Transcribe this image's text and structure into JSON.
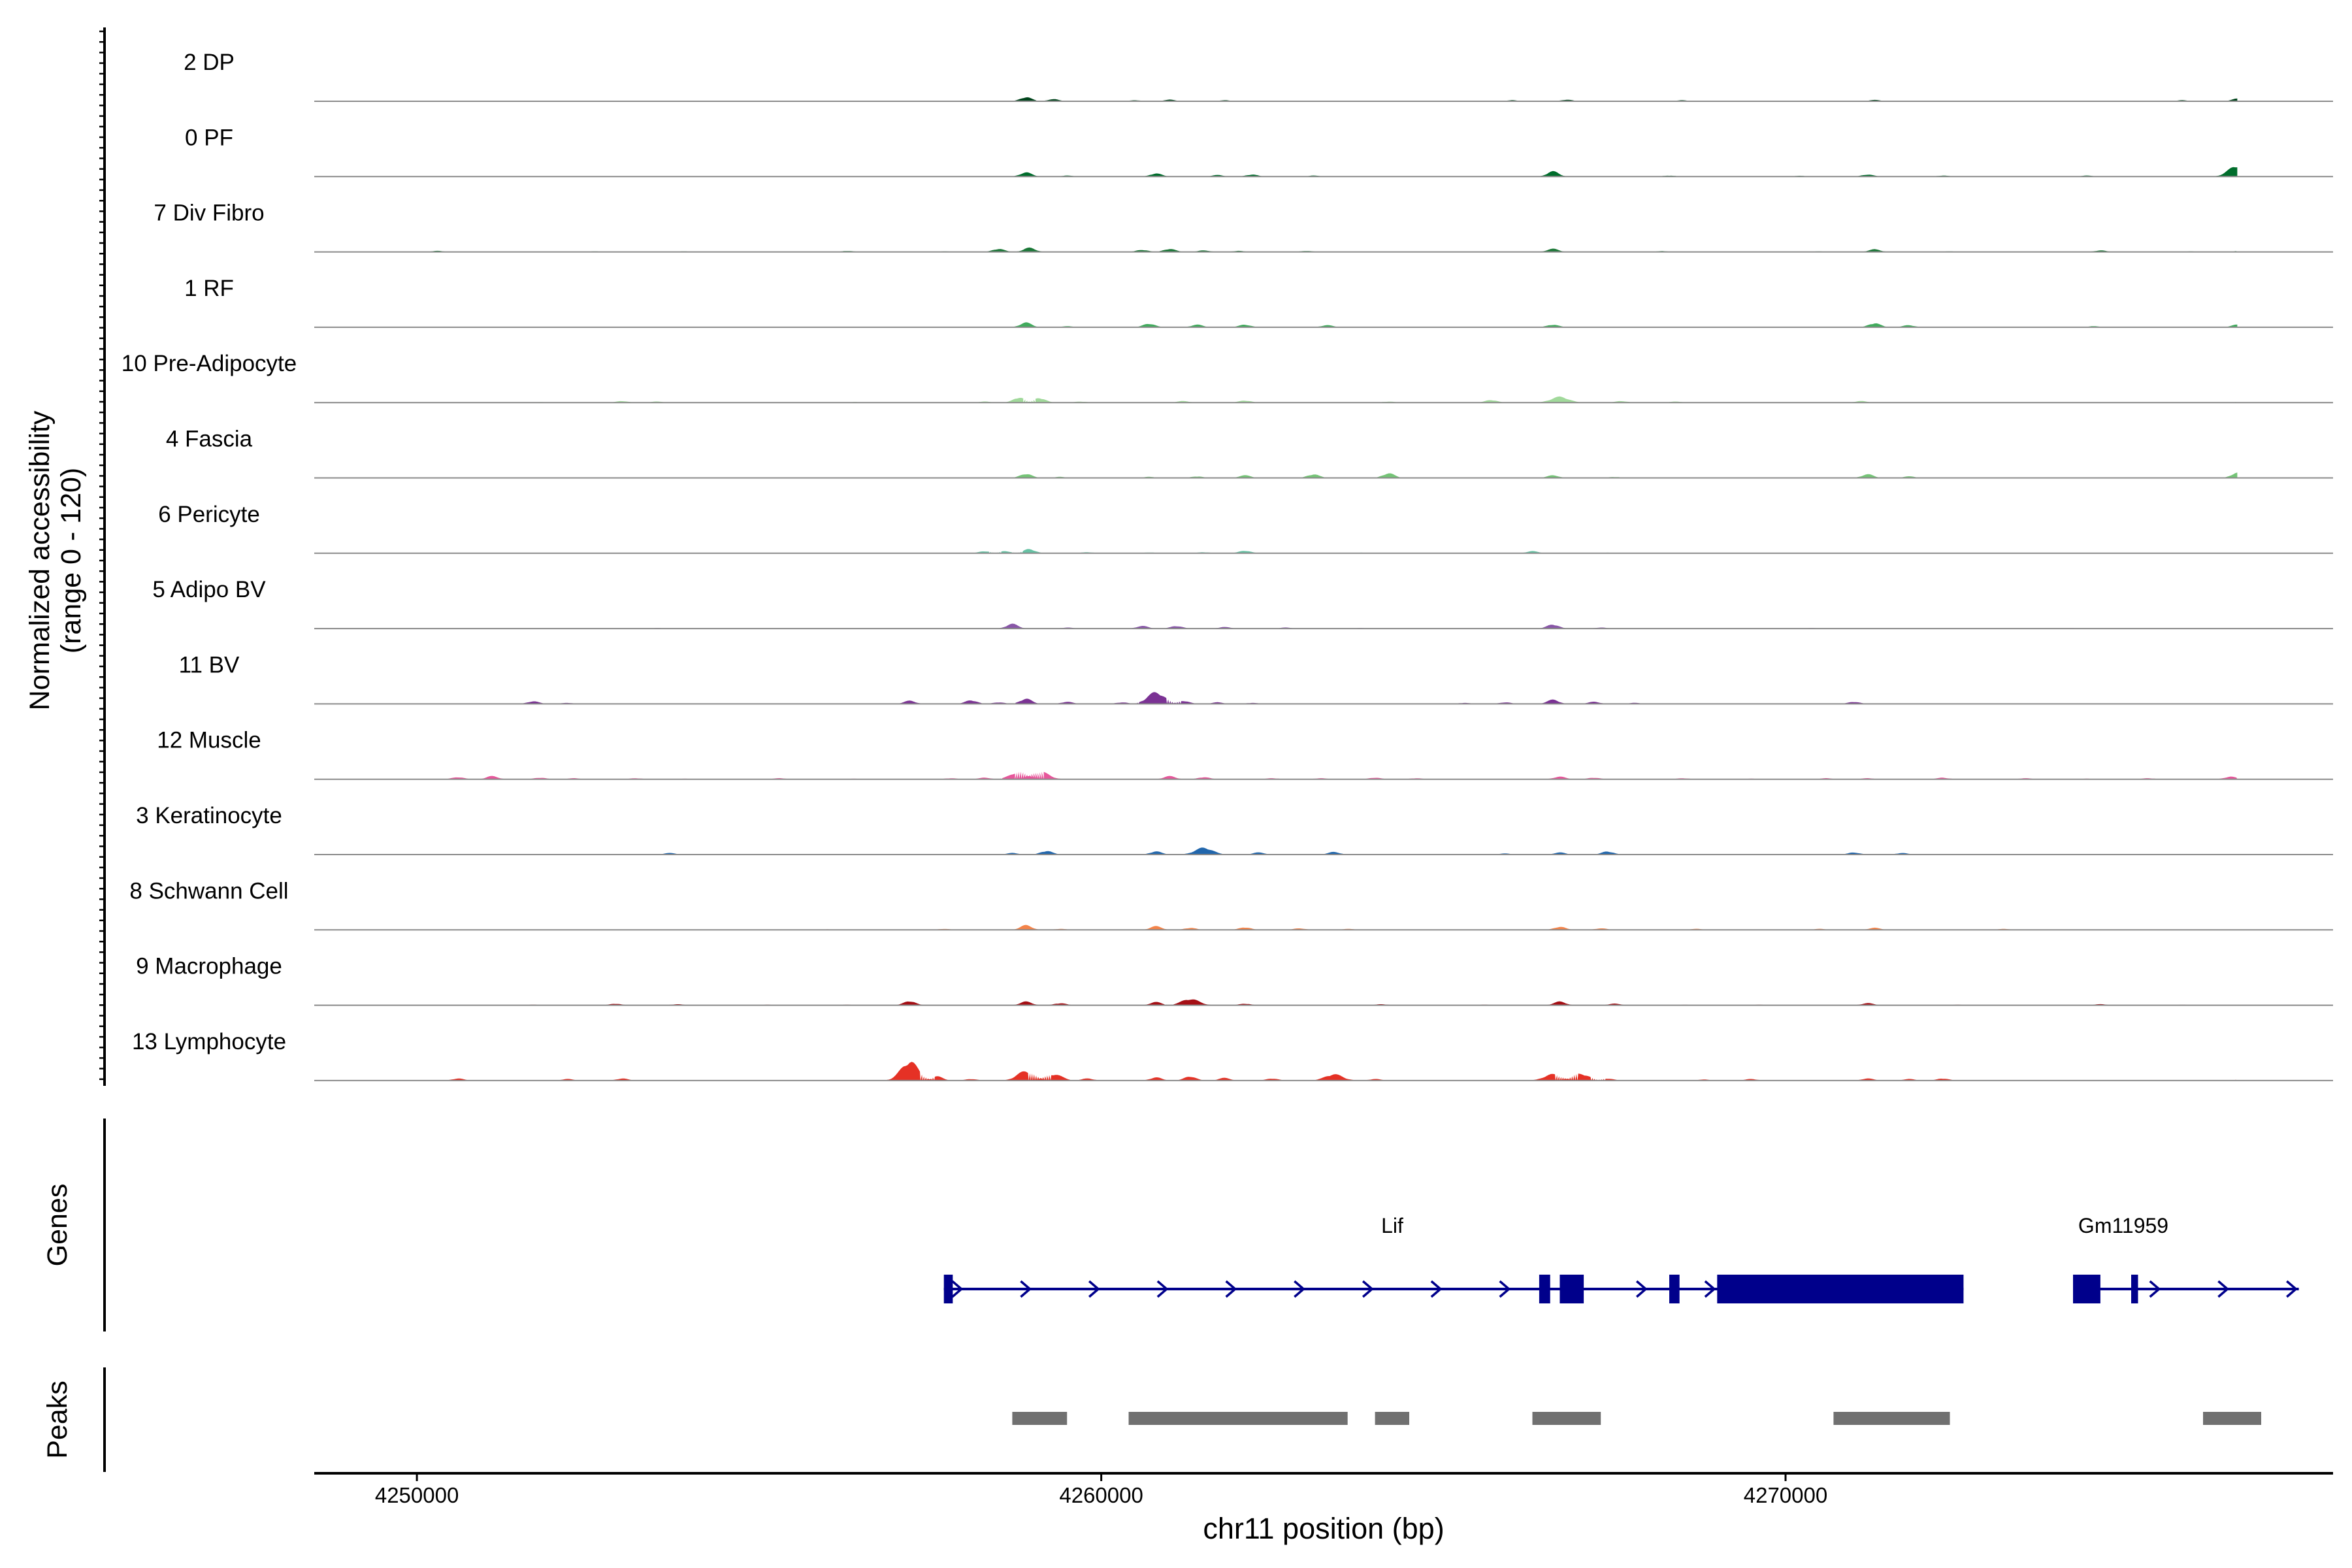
{
  "chart_data": {
    "type": "area",
    "title": "",
    "chromosome": "chr11",
    "xlabel": "chr11 position (bp)",
    "ylabel": "Normalized accessibility",
    "ylabel_range": "(range 0 - 120)",
    "ylim": [
      0,
      120
    ],
    "xlim": [
      4248500,
      4278000
    ],
    "x_ticks": [
      4250000,
      4260000,
      4270000
    ],
    "x_tick_labels": [
      "4250000",
      "4260000",
      "4270000"
    ],
    "genes_label": "Genes",
    "peaks_label": "Peaks",
    "tracks": [
      {
        "name": "2 DP",
        "color": "#00441B",
        "peaks": [
          [
            4250000,
            0.6
          ],
          [
            4251500,
            0.8
          ],
          [
            4254000,
            0.8
          ],
          [
            4256000,
            0.8
          ],
          [
            4258000,
            0.8
          ],
          [
            4258900,
            8
          ],
          [
            4259300,
            4
          ],
          [
            4260500,
            2
          ],
          [
            4261000,
            3
          ],
          [
            4261800,
            2
          ],
          [
            4263000,
            1
          ],
          [
            4264500,
            1
          ],
          [
            4266000,
            2
          ],
          [
            4266800,
            3
          ],
          [
            4268500,
            2
          ],
          [
            4269500,
            1
          ],
          [
            4271300,
            2.5
          ],
          [
            4273000,
            1
          ],
          [
            4274500,
            1
          ],
          [
            4275800,
            2
          ],
          [
            4276600,
            5
          ],
          [
            4277400,
            1
          ]
        ]
      },
      {
        "name": "0 PF",
        "color": "#006D2C",
        "peaks": [
          [
            4252500,
            0.6
          ],
          [
            4258900,
            8
          ],
          [
            4259500,
            2
          ],
          [
            4260800,
            6
          ],
          [
            4261700,
            3
          ],
          [
            4262200,
            4
          ],
          [
            4263100,
            2
          ],
          [
            4266600,
            10
          ],
          [
            4268300,
            2
          ],
          [
            4270200,
            1.5
          ],
          [
            4271200,
            4
          ],
          [
            4272300,
            2
          ],
          [
            4274400,
            2
          ],
          [
            4276600,
            21
          ],
          [
            4277000,
            2
          ]
        ]
      },
      {
        "name": "7 Div Fibro",
        "color": "#1B7837",
        "peaks": [
          [
            4250300,
            2
          ],
          [
            4252600,
            1
          ],
          [
            4253900,
            1
          ],
          [
            4256300,
            2
          ],
          [
            4257700,
            1
          ],
          [
            4258500,
            6
          ],
          [
            4258950,
            8
          ],
          [
            4260600,
            4
          ],
          [
            4261000,
            6
          ],
          [
            4261500,
            3
          ],
          [
            4262000,
            2
          ],
          [
            4263000,
            2
          ],
          [
            4266600,
            6
          ],
          [
            4268200,
            1.5
          ],
          [
            4270500,
            1
          ],
          [
            4271300,
            5
          ],
          [
            4272400,
            1
          ],
          [
            4274600,
            3
          ],
          [
            4275900,
            1
          ],
          [
            4276700,
            4
          ]
        ]
      },
      {
        "name": "1 RF",
        "color": "#41AB5D",
        "peaks": [
          [
            4258900,
            9
          ],
          [
            4259500,
            2
          ],
          [
            4260700,
            7
          ],
          [
            4261400,
            5
          ],
          [
            4262100,
            5
          ],
          [
            4263300,
            4
          ],
          [
            4265400,
            1
          ],
          [
            4266600,
            5
          ],
          [
            4267800,
            1
          ],
          [
            4270200,
            1
          ],
          [
            4271300,
            8
          ],
          [
            4271800,
            4
          ],
          [
            4274500,
            2
          ],
          [
            4276600,
            5
          ]
        ]
      },
      {
        "name": "10 Pre-Adipocyte",
        "color": "#A1D99B",
        "peaks": [
          [
            4251800,
            1
          ],
          [
            4253000,
            3
          ],
          [
            4253500,
            2
          ],
          [
            4254700,
            1
          ],
          [
            4256400,
            1
          ],
          [
            4257600,
            1
          ],
          [
            4258300,
            2
          ],
          [
            4258800,
            10
          ],
          [
            4259100,
            9
          ],
          [
            4259700,
            2
          ],
          [
            4261200,
            3
          ],
          [
            4262100,
            4
          ],
          [
            4264200,
            2
          ],
          [
            4265700,
            5
          ],
          [
            4266700,
            11
          ],
          [
            4267600,
            3
          ],
          [
            4268400,
            2
          ],
          [
            4271100,
            3
          ],
          [
            4273800,
            1
          ],
          [
            4276300,
            1
          ],
          [
            4276700,
            3
          ]
        ]
      },
      {
        "name": "4 Fascia",
        "color": "#74C476",
        "peaks": [
          [
            4258900,
            8
          ],
          [
            4259400,
            2
          ],
          [
            4260700,
            2
          ],
          [
            4261400,
            3
          ],
          [
            4262100,
            5
          ],
          [
            4263100,
            7
          ],
          [
            4264200,
            9
          ],
          [
            4266600,
            5
          ],
          [
            4267500,
            2
          ],
          [
            4269200,
            1
          ],
          [
            4271200,
            7
          ],
          [
            4271800,
            3
          ],
          [
            4274300,
            1
          ],
          [
            4276600,
            10
          ]
        ]
      },
      {
        "name": "6 Pericyte",
        "color": "#66C2A4",
        "peaks": [
          [
            4252000,
            0.6
          ],
          [
            4257700,
            1
          ],
          [
            4258300,
            4
          ],
          [
            4258600,
            4
          ],
          [
            4258950,
            8
          ],
          [
            4259800,
            2
          ],
          [
            4260700,
            1.5
          ],
          [
            4261500,
            2
          ],
          [
            4262100,
            5
          ],
          [
            4263800,
            1
          ],
          [
            4266300,
            4
          ],
          [
            4267400,
            1
          ],
          [
            4271100,
            1
          ],
          [
            4273800,
            1
          ]
        ]
      },
      {
        "name": "5 Adipo BV",
        "color": "#8856A7",
        "peaks": [
          [
            4253500,
            1
          ],
          [
            4258700,
            9
          ],
          [
            4259500,
            2
          ],
          [
            4260600,
            5
          ],
          [
            4261100,
            5
          ],
          [
            4261800,
            3
          ],
          [
            4262700,
            2
          ],
          [
            4263800,
            1
          ],
          [
            4266600,
            8
          ],
          [
            4267300,
            2
          ],
          [
            4270400,
            1
          ],
          [
            4274200,
            1
          ]
        ]
      },
      {
        "name": "11 BV",
        "color": "#7B3294",
        "peaks": [
          [
            4251700,
            5
          ],
          [
            4252200,
            2
          ],
          [
            4253700,
            1
          ],
          [
            4257200,
            6
          ],
          [
            4258100,
            7
          ],
          [
            4258500,
            3
          ],
          [
            4258900,
            10
          ],
          [
            4259500,
            4
          ],
          [
            4260300,
            3
          ],
          [
            4260800,
            22
          ],
          [
            4261200,
            6
          ],
          [
            4261700,
            3
          ],
          [
            4262200,
            2
          ],
          [
            4262900,
            1
          ],
          [
            4263500,
            1
          ],
          [
            4264200,
            1
          ],
          [
            4265300,
            2
          ],
          [
            4265900,
            3
          ],
          [
            4266600,
            8
          ],
          [
            4267200,
            4
          ],
          [
            4267800,
            2
          ],
          [
            4268600,
            1
          ],
          [
            4271000,
            4
          ],
          [
            4271700,
            1
          ],
          [
            4274200,
            1
          ],
          [
            4276700,
            3
          ],
          [
            4277400,
            1
          ]
        ]
      },
      {
        "name": "12 Muscle",
        "color": "#E7579B",
        "peaks": [
          [
            4250600,
            4
          ],
          [
            4251100,
            6
          ],
          [
            4251800,
            3
          ],
          [
            4252300,
            2
          ],
          [
            4253200,
            2
          ],
          [
            4253900,
            1
          ],
          [
            4255300,
            2
          ],
          [
            4256400,
            1
          ],
          [
            4257800,
            2
          ],
          [
            4258300,
            3
          ],
          [
            4258800,
            14
          ],
          [
            4259100,
            15
          ],
          [
            4261000,
            6
          ],
          [
            4261500,
            4
          ],
          [
            4262500,
            2
          ],
          [
            4263200,
            2
          ],
          [
            4264000,
            3
          ],
          [
            4264600,
            2
          ],
          [
            4266700,
            5
          ],
          [
            4267200,
            3
          ],
          [
            4268500,
            2
          ],
          [
            4269500,
            1
          ],
          [
            4270600,
            2
          ],
          [
            4271200,
            2
          ],
          [
            4272300,
            3
          ],
          [
            4273500,
            2
          ],
          [
            4274400,
            1
          ],
          [
            4275300,
            2
          ],
          [
            4276500,
            5
          ],
          [
            4277100,
            4
          ]
        ]
      },
      {
        "name": "3 Keratinocyte",
        "color": "#2166AC",
        "peaks": [
          [
            4250200,
            0.6
          ],
          [
            4253700,
            3
          ],
          [
            4254900,
            0.8
          ],
          [
            4256300,
            1
          ],
          [
            4258100,
            1
          ],
          [
            4258700,
            3
          ],
          [
            4259200,
            7
          ],
          [
            4260800,
            6
          ],
          [
            4261500,
            13
          ],
          [
            4262300,
            4
          ],
          [
            4263400,
            5
          ],
          [
            4265900,
            2
          ],
          [
            4266700,
            4
          ],
          [
            4267400,
            6
          ],
          [
            4269000,
            1
          ],
          [
            4271000,
            4
          ],
          [
            4271700,
            3
          ],
          [
            4273000,
            1
          ],
          [
            4274100,
            1
          ]
        ]
      },
      {
        "name": "8 Schwann Cell",
        "color": "#F4844A",
        "peaks": [
          [
            4252200,
            0.6
          ],
          [
            4256000,
            1
          ],
          [
            4257700,
            2
          ],
          [
            4258900,
            9
          ],
          [
            4259400,
            2
          ],
          [
            4260800,
            7
          ],
          [
            4261300,
            4
          ],
          [
            4262100,
            5
          ],
          [
            4262900,
            3
          ],
          [
            4263600,
            2
          ],
          [
            4265500,
            1
          ],
          [
            4266700,
            6
          ],
          [
            4267300,
            3
          ],
          [
            4268700,
            2
          ],
          [
            4270500,
            2
          ],
          [
            4271300,
            4
          ],
          [
            4273200,
            2
          ],
          [
            4274300,
            1
          ],
          [
            4276800,
            3
          ]
        ]
      },
      {
        "name": "9 Macrophage",
        "color": "#A50F15",
        "peaks": [
          [
            4251700,
            1
          ],
          [
            4252900,
            3
          ],
          [
            4253800,
            2
          ],
          [
            4255100,
            1
          ],
          [
            4256300,
            1
          ],
          [
            4257200,
            8
          ],
          [
            4258900,
            7
          ],
          [
            4259400,
            4
          ],
          [
            4260800,
            6
          ],
          [
            4261300,
            12
          ],
          [
            4262100,
            3
          ],
          [
            4264100,
            2
          ],
          [
            4265600,
            1
          ],
          [
            4266700,
            7
          ],
          [
            4267500,
            3
          ],
          [
            4268500,
            1
          ],
          [
            4269600,
            1
          ],
          [
            4271200,
            4
          ],
          [
            4272500,
            1
          ],
          [
            4274600,
            2
          ],
          [
            4275800,
            1
          ],
          [
            4276700,
            2
          ]
        ]
      },
      {
        "name": "13 Lymphocyte",
        "color": "#E53125",
        "peaks": [
          [
            4250600,
            4
          ],
          [
            4252200,
            3
          ],
          [
            4253000,
            4
          ],
          [
            4257200,
            36
          ],
          [
            4257600,
            8
          ],
          [
            4258100,
            3
          ],
          [
            4258900,
            18
          ],
          [
            4259300,
            12
          ],
          [
            4259800,
            4
          ],
          [
            4260800,
            6
          ],
          [
            4261300,
            8
          ],
          [
            4261800,
            5
          ],
          [
            4262500,
            4
          ],
          [
            4263400,
            12
          ],
          [
            4264000,
            3
          ],
          [
            4266600,
            12
          ],
          [
            4267000,
            13
          ],
          [
            4267400,
            4
          ],
          [
            4268800,
            2
          ],
          [
            4269500,
            3
          ],
          [
            4271200,
            4
          ],
          [
            4271800,
            3
          ],
          [
            4272300,
            4
          ],
          [
            4276700,
            4
          ]
        ]
      }
    ],
    "genes": [
      {
        "name": "Lif",
        "strand": "+",
        "start": 4257700,
        "end": 4272600,
        "exons": [
          [
            4257700,
            4257830
          ],
          [
            4266400,
            4266560
          ],
          [
            4266700,
            4267050
          ],
          [
            4268300,
            4268450
          ],
          [
            4269000,
            4272600
          ]
        ]
      },
      {
        "name": "Gm11959",
        "strand": "+",
        "start": 4274200,
        "end": 4277500,
        "exons": [
          [
            4274200,
            4274600
          ],
          [
            4275050,
            4275150
          ]
        ]
      }
    ],
    "peak_regions": [
      [
        4258700,
        4259500
      ],
      [
        4260400,
        4263600
      ],
      [
        4264000,
        4264500
      ],
      [
        4266300,
        4267300
      ],
      [
        4270700,
        4272400
      ],
      [
        4276100,
        4276950
      ]
    ]
  }
}
